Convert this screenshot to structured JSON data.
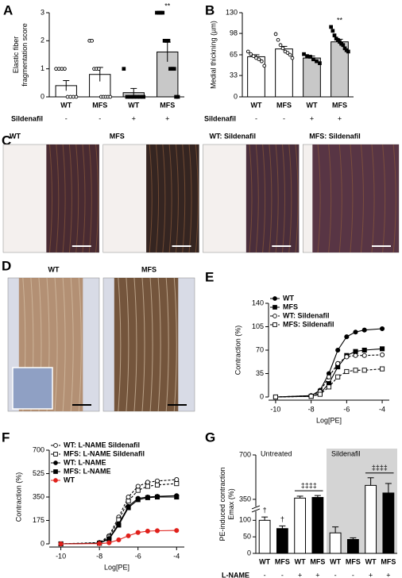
{
  "chart_data": [
    {
      "type": "bar",
      "panel": "A",
      "ylabel": [
        "Elastic fiber",
        "fragmentation score"
      ],
      "categories": [
        "WT",
        "MFS",
        "WT",
        "MFS"
      ],
      "values": [
        0.4,
        0.8,
        0.15,
        1.6
      ],
      "errors": [
        0.18,
        0.25,
        0.15,
        0.35
      ],
      "points": [
        [
          1,
          1,
          1,
          1,
          0,
          0,
          0,
          0
        ],
        [
          2,
          2,
          1,
          1,
          1,
          0,
          0,
          0,
          0,
          0
        ],
        [
          1,
          0,
          0,
          0,
          0,
          0,
          0
        ],
        [
          3,
          3,
          3,
          3,
          2,
          2,
          2,
          1,
          1,
          1,
          0,
          0
        ]
      ],
      "point_markers": [
        "open-circle",
        "open-circle",
        "square",
        "square"
      ],
      "bar_colors": [
        "#ffffff",
        "#ffffff",
        "#c8c8c8",
        "#c8c8c8"
      ],
      "annotations": [
        null,
        null,
        null,
        "**"
      ],
      "row": {
        "name": "Sildenafil",
        "values": [
          "-",
          "-",
          "+",
          "+"
        ]
      },
      "ylim": [
        0,
        3
      ],
      "yticks": [
        0,
        1,
        2,
        3
      ]
    },
    {
      "type": "bar",
      "panel": "B",
      "ylabel": "Medial thickning (µm)",
      "categories": [
        "WT",
        "MFS",
        "WT",
        "MFS"
      ],
      "values": [
        62,
        74,
        60,
        85
      ],
      "errors": [
        3,
        4,
        3,
        4
      ],
      "points": [
        [
          70,
          66,
          63,
          60,
          58,
          55,
          48
        ],
        [
          97,
          88,
          80,
          75,
          70,
          68,
          65,
          60
        ],
        [
          66,
          63,
          62,
          58,
          55,
          52
        ],
        [
          108,
          102,
          95,
          90,
          88,
          85,
          82,
          80,
          75,
          72,
          70
        ]
      ],
      "point_markers": [
        "open-circle",
        "open-circle",
        "square",
        "square"
      ],
      "bar_colors": [
        "#ffffff",
        "#ffffff",
        "#c8c8c8",
        "#c8c8c8"
      ],
      "annotations": [
        null,
        null,
        null,
        "**"
      ],
      "row": {
        "name": "Sildenafil",
        "values": [
          "-",
          "-",
          "+",
          "+"
        ]
      },
      "ylim": [
        0,
        130
      ],
      "yticks": [
        0,
        33,
        65,
        98,
        130
      ]
    },
    {
      "type": "image",
      "panel": "C",
      "labels": [
        "WT",
        "MFS",
        "WT: Sildenafil",
        "MFS: Sildenafil"
      ]
    },
    {
      "type": "image",
      "panel": "D",
      "labels": [
        "WT",
        "MFS"
      ]
    },
    {
      "type": "line",
      "panel": "E",
      "xlabel": "Log[PE]",
      "ylabel": "Contraction (%)",
      "x": [
        -10,
        -8,
        -7.5,
        -7,
        -6.5,
        -6,
        -5.5,
        -5,
        -4
      ],
      "series": [
        {
          "name": "WT",
          "color": "#000000",
          "marker": "circle",
          "dashed": false,
          "values": [
            0,
            2,
            10,
            35,
            70,
            90,
            97,
            100,
            102
          ]
        },
        {
          "name": "MFS",
          "color": "#000000",
          "marker": "square",
          "dashed": false,
          "values": [
            0,
            1,
            5,
            20,
            45,
            62,
            68,
            70,
            72
          ]
        },
        {
          "name": "WT: Sildenafil",
          "color": "#000000",
          "marker": "open-circle",
          "dashed": true,
          "values": [
            0,
            2,
            8,
            30,
            50,
            60,
            62,
            62,
            63
          ]
        },
        {
          "name": "MFS:  Sildenafil",
          "color": "#000000",
          "marker": "open-square",
          "dashed": true,
          "values": [
            0,
            1,
            4,
            15,
            30,
            38,
            40,
            40,
            42
          ]
        }
      ],
      "xlim": [
        -10.4,
        -3.6
      ],
      "xticks": [
        -10,
        -8,
        -6,
        -4
      ],
      "ylim": [
        0,
        140
      ],
      "yticks": [
        0,
        35,
        70,
        105,
        140
      ]
    },
    {
      "type": "line",
      "panel": "F",
      "xlabel": "Log[PE]",
      "ylabel": "Contraction (%)",
      "x": [
        -10,
        -8,
        -7.5,
        -7,
        -6.5,
        -6,
        -5.5,
        -5,
        -4
      ],
      "series": [
        {
          "name": "WT: L-NAME Sildenafil",
          "color": "#000000",
          "marker": "open-circle",
          "dashed": true,
          "values": [
            0,
            10,
            60,
            200,
            350,
            430,
            460,
            470,
            480
          ]
        },
        {
          "name": "MFS: L-NAME Sildenafil",
          "color": "#000000",
          "marker": "open-square",
          "dashed": true,
          "values": [
            0,
            5,
            50,
            180,
            320,
            400,
            430,
            440,
            450
          ]
        },
        {
          "name": "WT: L-NAME",
          "color": "#000000",
          "marker": "circle",
          "dashed": false,
          "values": [
            0,
            5,
            40,
            150,
            280,
            340,
            350,
            355,
            360
          ]
        },
        {
          "name": "MFS: L-NAME",
          "color": "#000000",
          "marker": "square",
          "dashed": false,
          "values": [
            0,
            5,
            35,
            140,
            270,
            330,
            345,
            350,
            350
          ]
        },
        {
          "name": "WT",
          "color": "#e0201b",
          "marker": "circle",
          "dashed": false,
          "values": [
            0,
            2,
            8,
            30,
            60,
            85,
            95,
            98,
            100
          ]
        }
      ],
      "xlim": [
        -10.6,
        -3.6
      ],
      "xticks": [
        -10,
        -8,
        -6,
        -4
      ],
      "ylim": [
        0,
        700
      ],
      "yticks": [
        0,
        175,
        350,
        525,
        700
      ]
    },
    {
      "type": "bar",
      "panel": "G",
      "ylabel": [
        "PE-induced contraction",
        "Emax (%)"
      ],
      "categories": [
        "WT",
        "MFS",
        "WT",
        "MFS",
        "WT",
        "MFS",
        "WT",
        "MFS"
      ],
      "values": [
        100,
        75,
        360,
        365,
        62,
        42,
        460,
        400
      ],
      "errors": [
        10,
        8,
        15,
        15,
        18,
        5,
        60,
        75
      ],
      "bar_colors": [
        "#ffffff",
        "#000000",
        "#ffffff",
        "#000000",
        "#ffffff",
        "#000000",
        "#ffffff",
        "#000000"
      ],
      "annotations": [
        "†",
        "†",
        null,
        null,
        null,
        null,
        null,
        null
      ],
      "brackets": [
        {
          "label": "‡‡‡‡",
          "span": [
            2,
            3
          ]
        },
        {
          "label": "‡‡‡‡",
          "span": [
            6,
            7
          ]
        }
      ],
      "groups": [
        {
          "name": "Untreated",
          "span": [
            0,
            3
          ],
          "shade": null
        },
        {
          "name": "Sildenafil",
          "span": [
            4,
            7
          ],
          "shade": "#d4d4d4"
        }
      ],
      "row": {
        "name": "L-NAME",
        "values": [
          "-",
          "-",
          "+",
          "+",
          "-",
          "-",
          "+",
          "+"
        ]
      },
      "ylim": [
        0,
        700
      ],
      "axis_break": [
        125,
        300
      ],
      "yticks": [
        0,
        50,
        100,
        350,
        700
      ]
    }
  ]
}
